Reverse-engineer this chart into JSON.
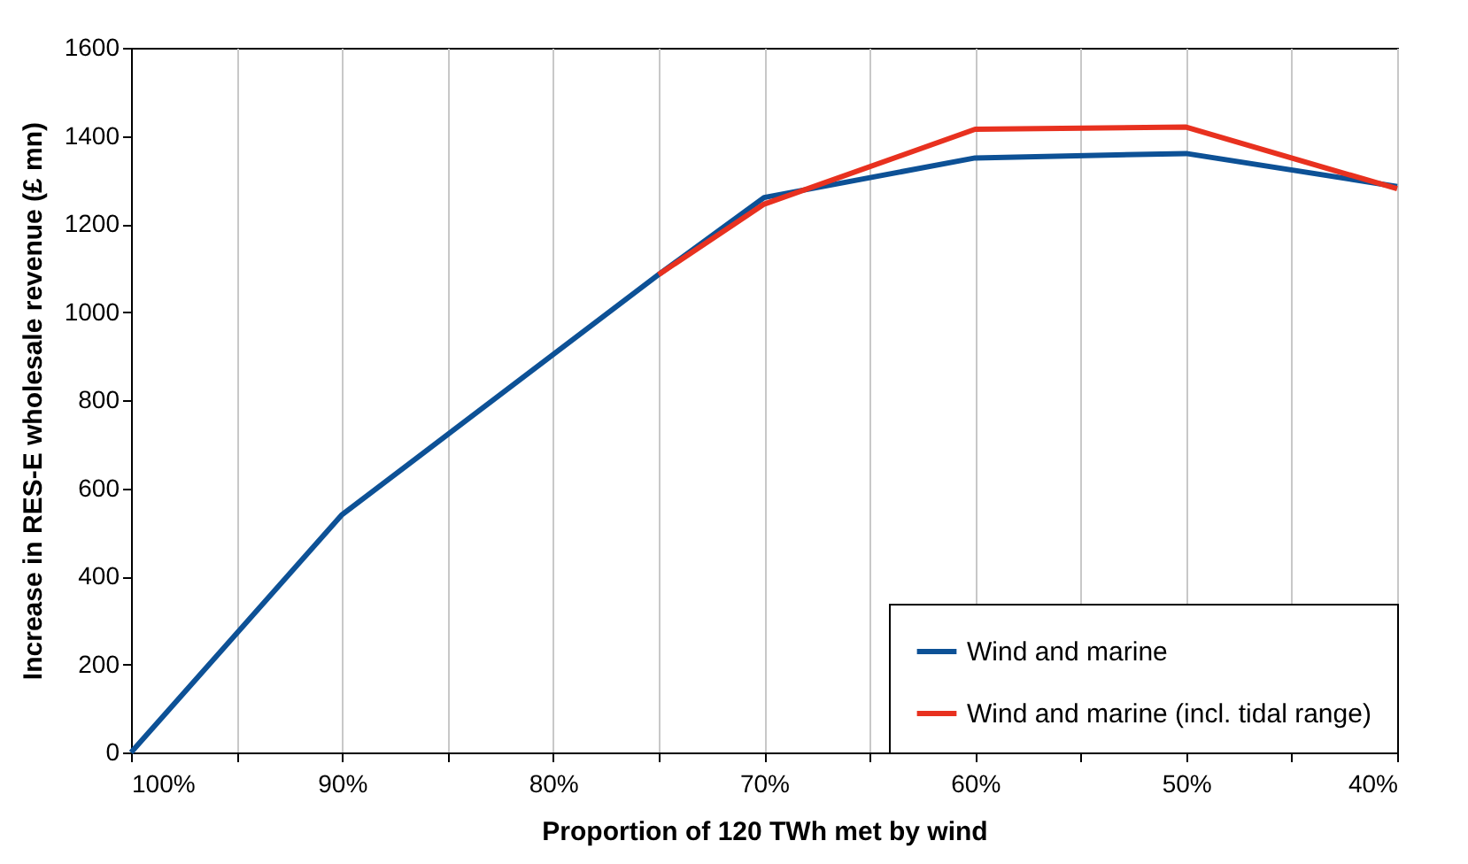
{
  "chart_data": {
    "type": "line",
    "xlabel": "Proportion of 120 TWh met by wind",
    "ylabel": "Increase in RES-E wholesale revenue (£ mn)",
    "x": [
      100,
      90,
      75,
      70,
      60,
      50,
      40
    ],
    "series": [
      {
        "name": "Wind and marine",
        "color": "#0d5196",
        "values": [
          0,
          540,
          1085,
          1260,
          1350,
          1360,
          1285
        ]
      },
      {
        "name": "Wind and marine (incl. tidal range)",
        "color": "#e8311f",
        "x": [
          75,
          70,
          60,
          50,
          40
        ],
        "values": [
          1085,
          1245,
          1415,
          1420,
          1280
        ]
      }
    ],
    "xlim": [
      100,
      40
    ],
    "xticks": [
      {
        "value": 100,
        "label": "100%"
      },
      {
        "value": 95,
        "label": null
      },
      {
        "value": 90,
        "label": "90%"
      },
      {
        "value": 85,
        "label": null
      },
      {
        "value": 80,
        "label": "80%"
      },
      {
        "value": 75,
        "label": null
      },
      {
        "value": 70,
        "label": "70%"
      },
      {
        "value": 65,
        "label": null
      },
      {
        "value": 60,
        "label": "60%"
      },
      {
        "value": 55,
        "label": null
      },
      {
        "value": 50,
        "label": "50%"
      },
      {
        "value": 45,
        "label": null
      },
      {
        "value": 40,
        "label": "40%"
      }
    ],
    "ylim": [
      0,
      1600
    ],
    "yticks": [
      0,
      200,
      400,
      600,
      800,
      1000,
      1200,
      1400,
      1600
    ],
    "grid": "x",
    "legend": "bottom right",
    "marker": "none",
    "line_style": "solid"
  }
}
